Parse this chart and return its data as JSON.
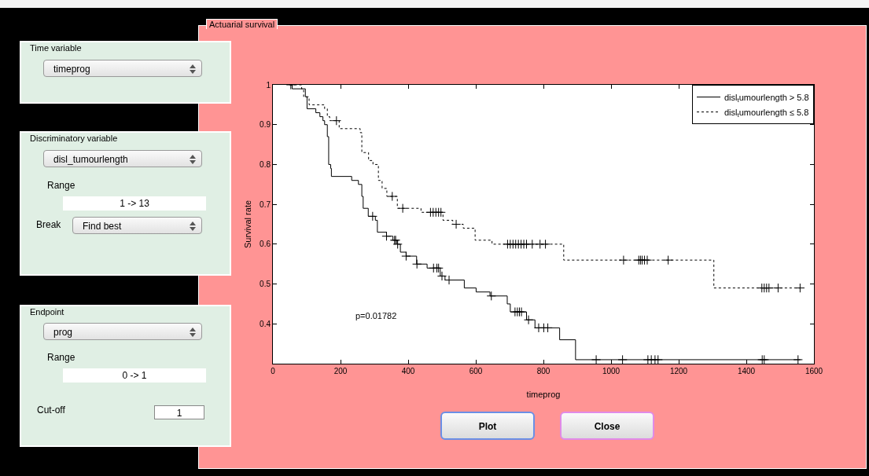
{
  "chart_data": [
    {
      "type": "step",
      "title": "Actuarial survival",
      "xlabel": "timeprog",
      "ylabel": "Survival rate",
      "xlim": [
        0,
        1600
      ],
      "xticks": [
        0,
        200,
        400,
        600,
        800,
        1000,
        1200,
        1400,
        1600
      ],
      "ylim": [
        0.3,
        1
      ],
      "yticks": [
        0.4,
        0.5,
        0.6,
        0.7,
        0.8,
        0.9,
        1
      ],
      "legend": "top right",
      "annotations": [
        "p=0.01782"
      ],
      "series": [
        {
          "type": "step",
          "name": "disl$_{t}$umourlength > 5.8",
          "color": "#000000",
          "line_style": "solid",
          "x": [
            50,
            57,
            96,
            101,
            127,
            139,
            148,
            153,
            161,
            165,
            171,
            173,
            233,
            253,
            263,
            267,
            282,
            303,
            309,
            336,
            355,
            367,
            377,
            394,
            425,
            456,
            495,
            509,
            566,
            601,
            642,
            693,
            702,
            750,
            775,
            848,
            895,
            1560
          ],
          "values": [
            1,
            0.99,
            0.97,
            0.94,
            0.93,
            0.92,
            0.91,
            0.9,
            0.87,
            0.8,
            0.79,
            0.77,
            0.76,
            0.75,
            0.72,
            0.69,
            0.67,
            0.66,
            0.63,
            0.62,
            0.61,
            0.6,
            0.58,
            0.57,
            0.55,
            0.54,
            0.52,
            0.51,
            0.49,
            0.48,
            0.47,
            0.45,
            0.43,
            0.41,
            0.39,
            0.36,
            0.31,
            0.31
          ]
        },
        {
          "type": "step",
          "name": "disl$_{t}$umourlength ≤ 5.8",
          "color": "#000000",
          "line_style": "dotted",
          "x": [
            50,
            85,
            91,
            107,
            153,
            161,
            168,
            196,
            258,
            263,
            283,
            296,
            312,
            323,
            337,
            368,
            438,
            503,
            532,
            563,
            598,
            648,
            860,
            1304,
            1560
          ],
          "values": [
            1,
            0.99,
            0.97,
            0.95,
            0.94,
            0.92,
            0.91,
            0.89,
            0.88,
            0.83,
            0.81,
            0.8,
            0.76,
            0.74,
            0.72,
            0.69,
            0.68,
            0.66,
            0.65,
            0.64,
            0.61,
            0.6,
            0.56,
            0.49,
            0.49
          ]
        },
        {
          "type": "scatter",
          "color": "#000000",
          "marker": "cross",
          "x": [
            295,
            336,
            360,
            363,
            369,
            394,
            426,
            475,
            485,
            490,
            500,
            521,
            646,
            716,
            723,
            729,
            735,
            756,
            786,
            801,
            813,
            956,
            1034,
            1109,
            1119,
            1130,
            1139,
            1447,
            1453,
            1553
          ],
          "values": [
            0.67,
            0.62,
            0.61,
            0.61,
            0.6,
            0.57,
            0.55,
            0.54,
            0.54,
            0.54,
            0.52,
            0.51,
            0.47,
            0.43,
            0.43,
            0.43,
            0.43,
            0.41,
            0.39,
            0.39,
            0.39,
            0.31,
            0.31,
            0.31,
            0.31,
            0.31,
            0.31,
            0.31,
            0.31,
            0.31
          ]
        },
        {
          "type": "scatter",
          "color": "#000000",
          "marker": "cross",
          "x": [
            53,
            188,
            353,
            384,
            466,
            474,
            482,
            490,
            497,
            542,
            694,
            702,
            710,
            718,
            726,
            734,
            742,
            750,
            767,
            790,
            806,
            1037,
            1082,
            1087,
            1092,
            1099,
            1107,
            1169,
            1446,
            1453,
            1460,
            1467,
            1494,
            1559
          ],
          "values": [
            1,
            0.91,
            0.72,
            0.69,
            0.68,
            0.68,
            0.68,
            0.68,
            0.68,
            0.65,
            0.6,
            0.6,
            0.6,
            0.6,
            0.6,
            0.6,
            0.6,
            0.6,
            0.6,
            0.6,
            0.6,
            0.56,
            0.56,
            0.56,
            0.56,
            0.56,
            0.56,
            0.56,
            0.49,
            0.49,
            0.49,
            0.49,
            0.49,
            0.49
          ]
        }
      ]
    },
    {
      "type": "other",
      "annotations": [
        "Time variable",
        "timeprog",
        "Discriminatory variable",
        "disl_tumourlength",
        "Range",
        "1 -> 13",
        "Break",
        "Find best",
        "Endpoint",
        "prog",
        "Range",
        "0 -> 1",
        "Cut-off",
        "1",
        "Plot",
        "Close"
      ]
    }
  ]
}
